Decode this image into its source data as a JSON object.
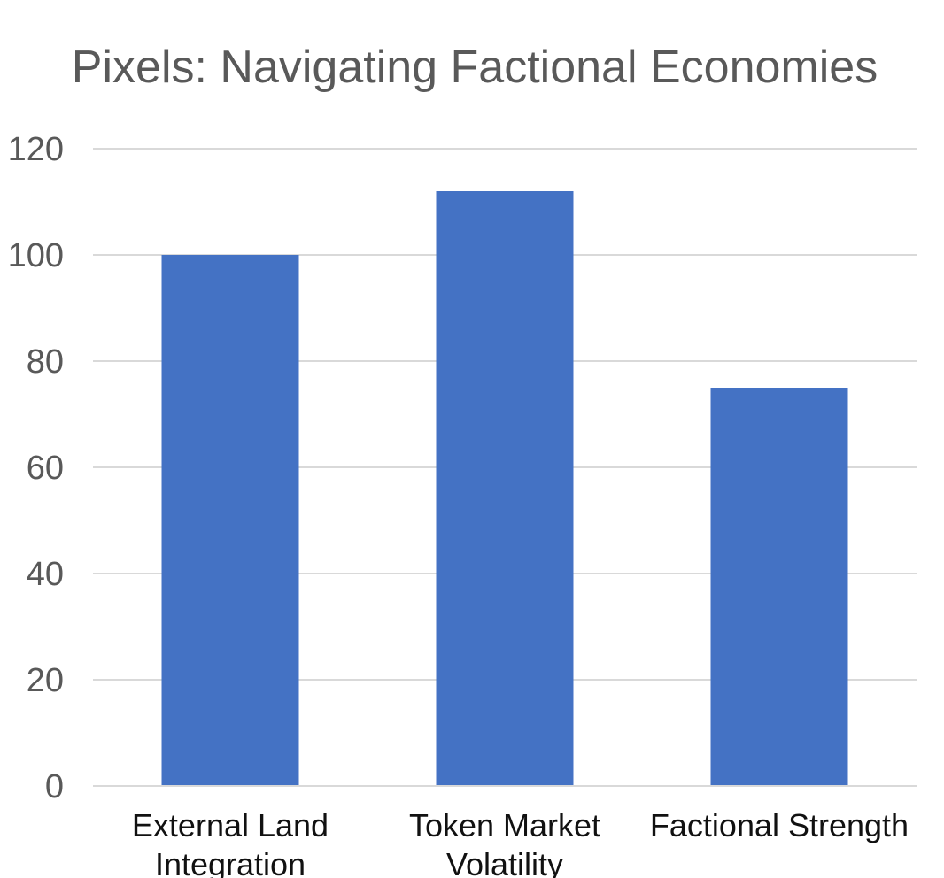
{
  "chart_data": {
    "type": "bar",
    "title": "Pixels: Navigating Factional Economies",
    "categories": [
      [
        "External Land",
        "Integration"
      ],
      [
        "Token Market",
        "Volatility"
      ],
      [
        "Factional Strength"
      ]
    ],
    "values": [
      100,
      112,
      75
    ],
    "ylim": [
      0,
      120
    ],
    "yticks": [
      0,
      20,
      40,
      60,
      80,
      100,
      120
    ],
    "xlabel": "",
    "ylabel": "",
    "grid": true,
    "legend": "none",
    "bar_color": "#4472c4"
  }
}
